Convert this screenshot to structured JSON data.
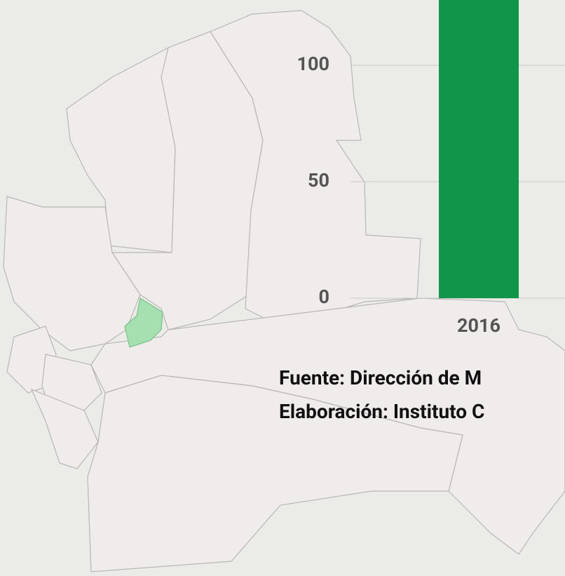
{
  "chart_data": {
    "type": "bar",
    "categories": [
      "2016"
    ],
    "values": [
      140
    ],
    "color": "#10954a",
    "ylim": [
      0,
      128
    ],
    "yticks": [
      0,
      50,
      100
    ],
    "grid": true,
    "annotations": [
      "Fuente: Dirección de M",
      "Elaboración: Instituto C"
    ]
  }
}
